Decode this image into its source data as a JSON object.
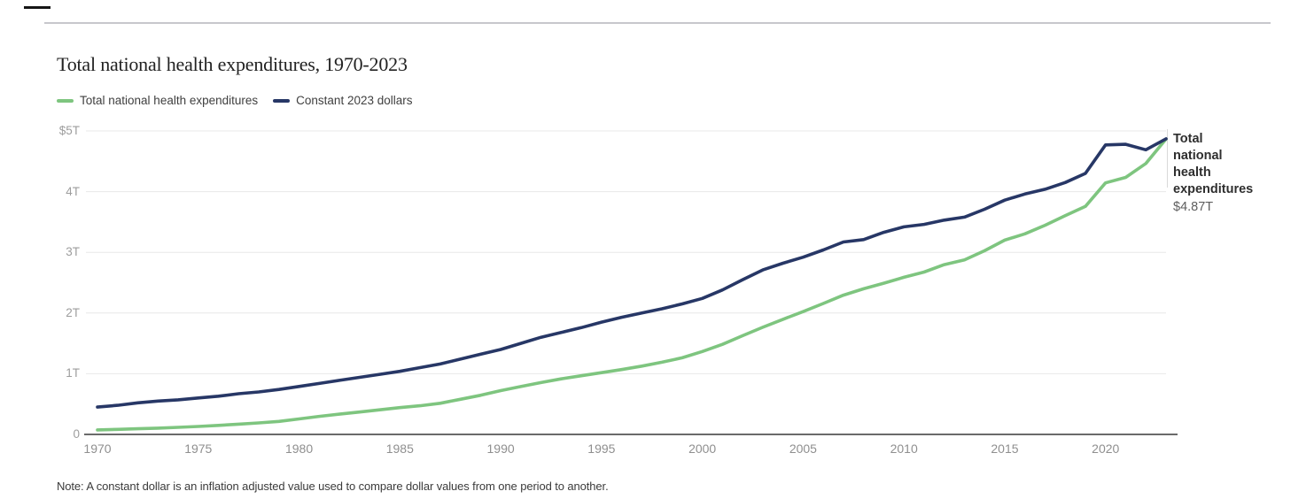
{
  "header": {
    "title": "Total national health expenditures, 1970-2023"
  },
  "legend": {
    "items": [
      {
        "label": "Total national health expenditures",
        "color": "#7ec57f"
      },
      {
        "label": "Constant 2023 dollars",
        "color": "#273766"
      }
    ]
  },
  "annotation": {
    "label": "Total national health expenditures",
    "value": "$4.87T"
  },
  "footer": {
    "note": "Note: A constant dollar is an inflation adjusted value used to compare dollar values from one period to another."
  },
  "colors": {
    "green_series": "#7ec57f",
    "navy_series": "#273766",
    "gridline": "#e8e8e8",
    "axis": "#383838",
    "right_stub": "#d9d9d9",
    "top_rule": "#c7c7cc",
    "top_dash": "#161616"
  },
  "chart_data": {
    "type": "line",
    "title": "Total national health expenditures, 1970-2023",
    "xlabel": "",
    "ylabel": "",
    "ylim": [
      0,
      5
    ],
    "grid": "horizontal",
    "legend_position": "top-left",
    "x": [
      1970,
      1971,
      1972,
      1973,
      1974,
      1975,
      1976,
      1977,
      1978,
      1979,
      1980,
      1981,
      1982,
      1983,
      1984,
      1985,
      1986,
      1987,
      1988,
      1989,
      1990,
      1991,
      1992,
      1993,
      1994,
      1995,
      1996,
      1997,
      1998,
      1999,
      2000,
      2001,
      2002,
      2003,
      2004,
      2005,
      2006,
      2007,
      2008,
      2009,
      2010,
      2011,
      2012,
      2013,
      2014,
      2015,
      2016,
      2017,
      2018,
      2019,
      2020,
      2021,
      2022,
      2023
    ],
    "x_tick_labels": [
      "1970",
      "1975",
      "1980",
      "1985",
      "1990",
      "1995",
      "2000",
      "2005",
      "2010",
      "2015",
      "2020"
    ],
    "x_tick_values": [
      1970,
      1975,
      1980,
      1985,
      1990,
      1995,
      2000,
      2005,
      2010,
      2015,
      2020
    ],
    "y_ticks": [
      {
        "label": "$5T",
        "value": 5
      },
      {
        "label": "4T",
        "value": 4
      },
      {
        "label": "3T",
        "value": 3
      },
      {
        "label": "2T",
        "value": 2
      },
      {
        "label": "1T",
        "value": 1
      },
      {
        "label": "0",
        "value": 0
      }
    ],
    "series": [
      {
        "name": "Total national health expenditures",
        "color": "#7ec57f",
        "unit": "trillions of dollars",
        "values": [
          0.075,
          0.083,
          0.093,
          0.103,
          0.117,
          0.131,
          0.149,
          0.169,
          0.189,
          0.215,
          0.255,
          0.297,
          0.334,
          0.369,
          0.405,
          0.442,
          0.472,
          0.513,
          0.579,
          0.644,
          0.721,
          0.788,
          0.854,
          0.916,
          0.967,
          1.017,
          1.068,
          1.125,
          1.19,
          1.263,
          1.366,
          1.484,
          1.627,
          1.766,
          1.896,
          2.024,
          2.157,
          2.295,
          2.399,
          2.491,
          2.589,
          2.675,
          2.797,
          2.875,
          3.026,
          3.201,
          3.305,
          3.446,
          3.604,
          3.757,
          4.144,
          4.234,
          4.464,
          4.867
        ]
      },
      {
        "name": "Constant 2023 dollars",
        "color": "#273766",
        "unit": "trillions of dollars",
        "values": [
          0.45,
          0.48,
          0.52,
          0.55,
          0.57,
          0.6,
          0.63,
          0.67,
          0.7,
          0.74,
          0.79,
          0.84,
          0.89,
          0.94,
          0.99,
          1.04,
          1.1,
          1.16,
          1.24,
          1.32,
          1.4,
          1.5,
          1.6,
          1.68,
          1.76,
          1.85,
          1.93,
          2.0,
          2.07,
          2.15,
          2.24,
          2.38,
          2.55,
          2.71,
          2.82,
          2.92,
          3.04,
          3.17,
          3.21,
          3.33,
          3.42,
          3.46,
          3.53,
          3.58,
          3.71,
          3.86,
          3.96,
          4.04,
          4.15,
          4.3,
          4.77,
          4.78,
          4.69,
          4.87
        ]
      }
    ],
    "end_label": {
      "text": "Total national health expenditures",
      "value": "$4.87T"
    }
  }
}
